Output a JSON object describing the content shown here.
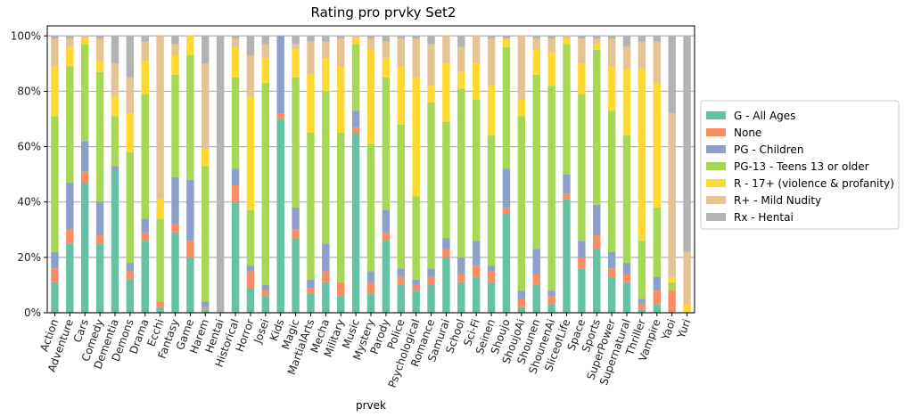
{
  "chart_data": {
    "type": "bar",
    "stacked": true,
    "title": "Rating pro prvky Set2",
    "xlabel": "prvek",
    "ylabel": "",
    "ylim": [
      0,
      100
    ],
    "y_tick_labels": [
      "0%",
      "20%",
      "40%",
      "60%",
      "80%",
      "100%"
    ],
    "grid": true,
    "legend_placement": "center-right",
    "categories": [
      "Action",
      "Adventure",
      "Cars",
      "Comedy",
      "Dementia",
      "Demons",
      "Drama",
      "Ecchi",
      "Fantasy",
      "Game",
      "Harem",
      "Hentai",
      "Historical",
      "Horror",
      "Josei",
      "Kids",
      "Magic",
      "MartialArts",
      "Mecha",
      "Military",
      "Music",
      "Mystery",
      "Parody",
      "Police",
      "Psychological",
      "Romance",
      "Samurai",
      "School",
      "Sci-Fi",
      "Seinen",
      "Shoujo",
      "ShoujoAi",
      "Shounen",
      "ShounenAi",
      "SliceofLife",
      "Space",
      "Sports",
      "SuperPower",
      "Supernatural",
      "Thriller",
      "Vampire",
      "Yaoi",
      "Yuri"
    ],
    "series": [
      {
        "name": "G - All Ages",
        "color": "#66c2a5",
        "values": [
          11,
          25,
          47,
          25,
          51,
          12,
          26,
          2,
          29,
          20,
          1,
          0,
          40,
          9,
          6,
          70,
          27,
          7,
          11,
          6,
          65,
          7,
          26,
          10,
          8,
          10,
          20,
          11,
          13,
          11,
          36,
          2,
          10,
          3,
          41,
          16,
          23,
          13,
          11,
          1,
          3,
          0,
          0
        ]
      },
      {
        "name": "None",
        "color": "#fc8d62",
        "values": [
          5,
          5,
          4,
          3,
          0,
          3,
          3,
          2,
          3,
          6,
          1,
          0,
          6,
          6,
          2,
          2,
          3,
          2,
          4,
          5,
          2,
          4,
          3,
          3,
          2,
          3,
          3,
          3,
          4,
          4,
          2,
          3,
          4,
          3,
          2,
          4,
          5,
          3,
          3,
          2,
          5,
          8,
          0
        ]
      },
      {
        "name": "PG - Children",
        "color": "#8da0cb",
        "values": [
          6,
          17,
          11,
          12,
          2,
          3,
          5,
          0,
          17,
          22,
          2,
          0,
          6,
          2,
          2,
          28,
          8,
          3,
          10,
          0,
          6,
          4,
          8,
          3,
          2,
          3,
          4,
          6,
          9,
          2,
          14,
          3,
          9,
          2,
          7,
          6,
          11,
          6,
          4,
          2,
          5,
          0,
          0
        ]
      },
      {
        "name": "PG-13 - Teens 13 or older",
        "color": "#a6d854",
        "values": [
          49,
          42,
          35,
          47,
          18,
          40,
          45,
          30,
          37,
          45,
          49,
          0,
          33,
          20,
          73,
          0,
          47,
          53,
          55,
          54,
          24,
          46,
          48,
          52,
          30,
          60,
          42,
          61,
          51,
          47,
          44,
          63,
          63,
          74,
          47,
          53,
          56,
          51,
          46,
          21,
          25,
          3,
          0
        ]
      },
      {
        "name": "R - 17+ (violence & profanity)",
        "color": "#ffd92f",
        "values": [
          18,
          7,
          2,
          4,
          7,
          14,
          12,
          7,
          7,
          7,
          6,
          0,
          11,
          41,
          9,
          0,
          10,
          21,
          12,
          24,
          2,
          34,
          7,
          21,
          43,
          6,
          21,
          6,
          13,
          18,
          3,
          6,
          9,
          12,
          2,
          11,
          2,
          16,
          24,
          62,
          45,
          2,
          3
        ]
      },
      {
        "name": "R+ - Mild Nudity",
        "color": "#e5c494",
        "values": [
          10,
          3,
          1,
          8,
          12,
          13,
          7,
          59,
          4,
          0,
          31,
          0,
          3,
          15,
          5,
          0,
          2,
          12,
          6,
          10,
          1,
          4,
          6,
          10,
          14,
          15,
          10,
          9,
          10,
          17,
          0,
          23,
          4,
          5,
          1,
          9,
          2,
          10,
          8,
          10,
          15,
          59,
          19
        ]
      },
      {
        "name": "Rx - Hentai",
        "color": "#b3b3b3",
        "values": [
          1,
          1,
          0,
          1,
          10,
          15,
          2,
          0,
          3,
          0,
          10,
          100,
          1,
          7,
          3,
          0,
          3,
          2,
          2,
          1,
          0,
          1,
          2,
          1,
          1,
          3,
          0,
          4,
          0,
          1,
          1,
          0,
          1,
          1,
          0,
          1,
          1,
          1,
          4,
          2,
          2,
          28,
          78
        ]
      }
    ]
  }
}
